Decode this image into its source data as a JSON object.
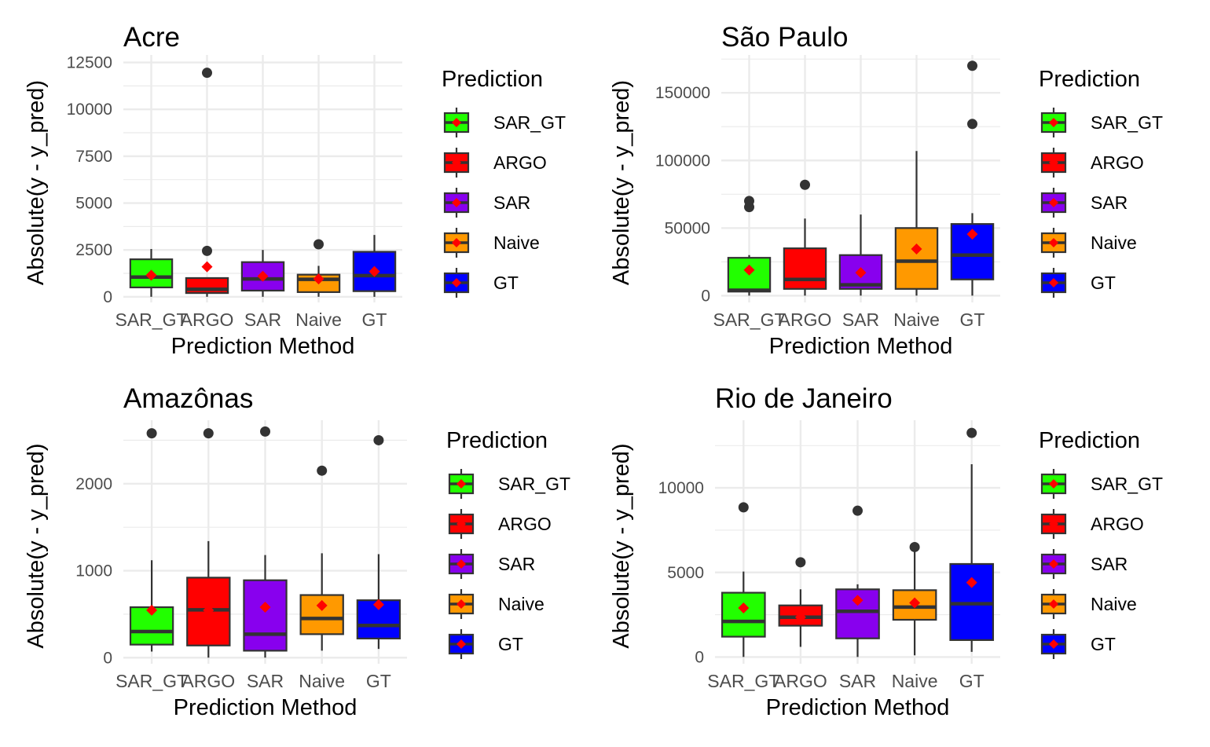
{
  "legend_title": "Prediction",
  "x_label": "Prediction Method",
  "y_label": "Absolute(y - y_pred)",
  "methods": [
    "SAR_GT",
    "ARGO",
    "SAR",
    "Naive",
    "GT"
  ],
  "colors": {
    "SAR_GT": "#22ff00",
    "ARGO": "#ff0000",
    "SAR": "#8800ee",
    "Naive": "#ff9900",
    "GT": "#0000ff",
    "mean_marker": "#ff0000",
    "outline": "#333333",
    "grid": "#ebebeb"
  },
  "chart_data": [
    {
      "type": "box",
      "title": "Acre",
      "xlabel": "Prediction Method",
      "ylabel": "Absolute(y - y_pred)",
      "ylim": [
        -300,
        12900
      ],
      "yticks": [
        0,
        2500,
        5000,
        7500,
        10000,
        12500
      ],
      "categories": [
        "SAR_GT",
        "ARGO",
        "SAR",
        "Naive",
        "GT"
      ],
      "boxes": [
        {
          "name": "SAR_GT",
          "whisker_low": 0,
          "q1": 500,
          "median": 1050,
          "q3": 2000,
          "whisker_high": 2550,
          "mean": 1150,
          "outliers": []
        },
        {
          "name": "ARGO",
          "whisker_low": 0,
          "q1": 200,
          "median": 400,
          "q3": 1000,
          "whisker_high": 1000,
          "mean": 1600,
          "outliers": [
            2450,
            11950
          ]
        },
        {
          "name": "SAR",
          "whisker_low": 0,
          "q1": 330,
          "median": 950,
          "q3": 1850,
          "whisker_high": 2500,
          "mean": 1100,
          "outliers": []
        },
        {
          "name": "Naive",
          "whisker_low": 0,
          "q1": 250,
          "median": 930,
          "q3": 1180,
          "whisker_high": 1650,
          "mean": 950,
          "outliers": [
            2800
          ]
        },
        {
          "name": "GT",
          "whisker_low": 0,
          "q1": 300,
          "median": 1130,
          "q3": 2400,
          "whisker_high": 3300,
          "mean": 1350,
          "outliers": []
        }
      ]
    },
    {
      "type": "box",
      "title": "São Paulo",
      "xlabel": "Prediction Method",
      "ylabel": "Absolute(y - y_pred)",
      "ylim": [
        -5000,
        178000
      ],
      "yticks": [
        0,
        50000,
        100000,
        150000
      ],
      "categories": [
        "SAR_GT",
        "ARGO",
        "SAR",
        "Naive",
        "GT"
      ],
      "boxes": [
        {
          "name": "SAR_GT",
          "whisker_low": 0,
          "q1": 3000,
          "median": 4000,
          "q3": 28000,
          "whisker_high": 30000,
          "mean": 19000,
          "outliers": [
            65500,
            70000
          ]
        },
        {
          "name": "ARGO",
          "whisker_low": 0,
          "q1": 5000,
          "median": 12000,
          "q3": 35000,
          "whisker_high": 57000,
          "mean": 17500,
          "outliers": [
            82000
          ]
        },
        {
          "name": "SAR",
          "whisker_low": 0,
          "q1": 5000,
          "median": 8000,
          "q3": 30000,
          "whisker_high": 60000,
          "mean": 17000,
          "outliers": []
        },
        {
          "name": "Naive",
          "whisker_low": 0,
          "q1": 5000,
          "median": 25500,
          "q3": 50000,
          "whisker_high": 107000,
          "mean": 34500,
          "outliers": []
        },
        {
          "name": "GT",
          "whisker_low": 0,
          "q1": 12000,
          "median": 30000,
          "q3": 53000,
          "whisker_high": 61000,
          "mean": 45500,
          "outliers": [
            127000,
            170000
          ]
        }
      ]
    },
    {
      "type": "box",
      "title": "Amazônas",
      "xlabel": "Prediction Method",
      "ylabel": "Absolute(y - y_pred)",
      "ylim": [
        -70,
        2730
      ],
      "yticks": [
        0,
        1000,
        2000
      ],
      "categories": [
        "SAR_GT",
        "ARGO",
        "SAR",
        "Naive",
        "GT"
      ],
      "boxes": [
        {
          "name": "SAR_GT",
          "whisker_low": 70,
          "q1": 150,
          "median": 300,
          "q3": 580,
          "whisker_high": 1120,
          "mean": 545,
          "outliers": [
            2580
          ]
        },
        {
          "name": "ARGO",
          "whisker_low": 0,
          "q1": 140,
          "median": 550,
          "q3": 920,
          "whisker_high": 1340,
          "mean": 545,
          "outliers": [
            2580
          ]
        },
        {
          "name": "SAR",
          "whisker_low": 0,
          "q1": 80,
          "median": 270,
          "q3": 890,
          "whisker_high": 1180,
          "mean": 580,
          "outliers": [
            2600
          ]
        },
        {
          "name": "Naive",
          "whisker_low": 80,
          "q1": 270,
          "median": 450,
          "q3": 720,
          "whisker_high": 1200,
          "mean": 600,
          "outliers": [
            2150
          ]
        },
        {
          "name": "GT",
          "whisker_low": 100,
          "q1": 220,
          "median": 370,
          "q3": 660,
          "whisker_high": 1190,
          "mean": 610,
          "outliers": [
            2500
          ]
        }
      ]
    },
    {
      "type": "box",
      "title": "Rio de Janeiro",
      "xlabel": "Prediction Method",
      "ylabel": "Absolute(y - y_pred)",
      "ylim": [
        -400,
        14000
      ],
      "yticks": [
        0,
        5000,
        10000
      ],
      "categories": [
        "SAR_GT",
        "ARGO",
        "SAR",
        "Naive",
        "GT"
      ],
      "boxes": [
        {
          "name": "SAR_GT",
          "whisker_low": 0,
          "q1": 1200,
          "median": 2100,
          "q3": 3800,
          "whisker_high": 5050,
          "mean": 2900,
          "outliers": [
            8850
          ]
        },
        {
          "name": "ARGO",
          "whisker_low": 600,
          "q1": 1850,
          "median": 2350,
          "q3": 3050,
          "whisker_high": 4000,
          "mean": 2350,
          "outliers": [
            5600
          ]
        },
        {
          "name": "SAR",
          "whisker_low": 0,
          "q1": 1100,
          "median": 2700,
          "q3": 4000,
          "whisker_high": 4300,
          "mean": 3350,
          "outliers": [
            8650
          ]
        },
        {
          "name": "Naive",
          "whisker_low": 100,
          "q1": 2200,
          "median": 2950,
          "q3": 3950,
          "whisker_high": 6400,
          "mean": 3200,
          "outliers": [
            6500
          ]
        },
        {
          "name": "GT",
          "whisker_low": 300,
          "q1": 1000,
          "median": 3150,
          "q3": 5500,
          "whisker_high": 11400,
          "mean": 4400,
          "outliers": [
            13250
          ]
        }
      ]
    }
  ]
}
